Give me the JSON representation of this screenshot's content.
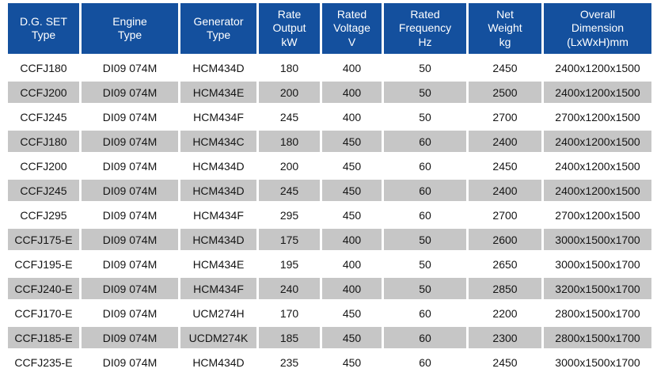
{
  "colors": {
    "header_bg": "#14509e",
    "header_text": "#ffffff",
    "row_bg": "#ffffff",
    "row_alt_bg": "#c6c6c6",
    "cell_text": "#151515"
  },
  "table": {
    "columns": [
      {
        "name": "dg-set-type",
        "label": "D.G. SET\nType"
      },
      {
        "name": "engine-type",
        "label": "Engine\nType"
      },
      {
        "name": "generator-type",
        "label": "Generator\nType"
      },
      {
        "name": "rate-output-kw",
        "label": "Rate\nOutput\nkW"
      },
      {
        "name": "rated-voltage-v",
        "label": "Rated\nVoltage\nV"
      },
      {
        "name": "rated-frequency-hz",
        "label": "Rated\nFrequency\nHz"
      },
      {
        "name": "net-weight-kg",
        "label": "Net\nWeight\nkg"
      },
      {
        "name": "overall-dimension",
        "label": "Overall\nDimension\n(LxWxH)mm"
      }
    ],
    "rows": [
      [
        "CCFJ180",
        "DI09 074M",
        "HCM434D",
        "180",
        "400",
        "50",
        "2450",
        "2400x1200x1500"
      ],
      [
        "CCFJ200",
        "DI09 074M",
        "HCM434E",
        "200",
        "400",
        "50",
        "2500",
        "2400x1200x1500"
      ],
      [
        "CCFJ245",
        "DI09 074M",
        "HCM434F",
        "245",
        "400",
        "50",
        "2700",
        "2700x1200x1500"
      ],
      [
        "CCFJ180",
        "DI09 074M",
        "HCM434C",
        "180",
        "450",
        "60",
        "2400",
        "2400x1200x1500"
      ],
      [
        "CCFJ200",
        "DI09 074M",
        "HCM434D",
        "200",
        "450",
        "60",
        "2450",
        "2400x1200x1500"
      ],
      [
        "CCFJ245",
        "DI09 074M",
        "HCM434D",
        "245",
        "450",
        "60",
        "2400",
        "2400x1200x1500"
      ],
      [
        "CCFJ295",
        "DI09 074M",
        "HCM434F",
        "295",
        "450",
        "60",
        "2700",
        "2700x1200x1500"
      ],
      [
        "CCFJ175-E",
        "DI09 074M",
        "HCM434D",
        "175",
        "400",
        "50",
        "2600",
        "3000x1500x1700"
      ],
      [
        "CCFJ195-E",
        "DI09 074M",
        "HCM434E",
        "195",
        "400",
        "50",
        "2650",
        "3000x1500x1700"
      ],
      [
        "CCFJ240-E",
        "DI09 074M",
        "HCM434F",
        "240",
        "400",
        "50",
        "2850",
        "3200x1500x1700"
      ],
      [
        "CCFJ170-E",
        "DI09 074M",
        "UCM274H",
        "170",
        "450",
        "60",
        "2200",
        "2800x1500x1700"
      ],
      [
        "CCFJ185-E",
        "DI09 074M",
        "UCDM274K",
        "185",
        "450",
        "60",
        "2300",
        "2800x1500x1700"
      ],
      [
        "CCFJ235-E",
        "DI09 074M",
        "HCM434D",
        "235",
        "450",
        "60",
        "2450",
        "3000x1500x1700"
      ]
    ]
  }
}
